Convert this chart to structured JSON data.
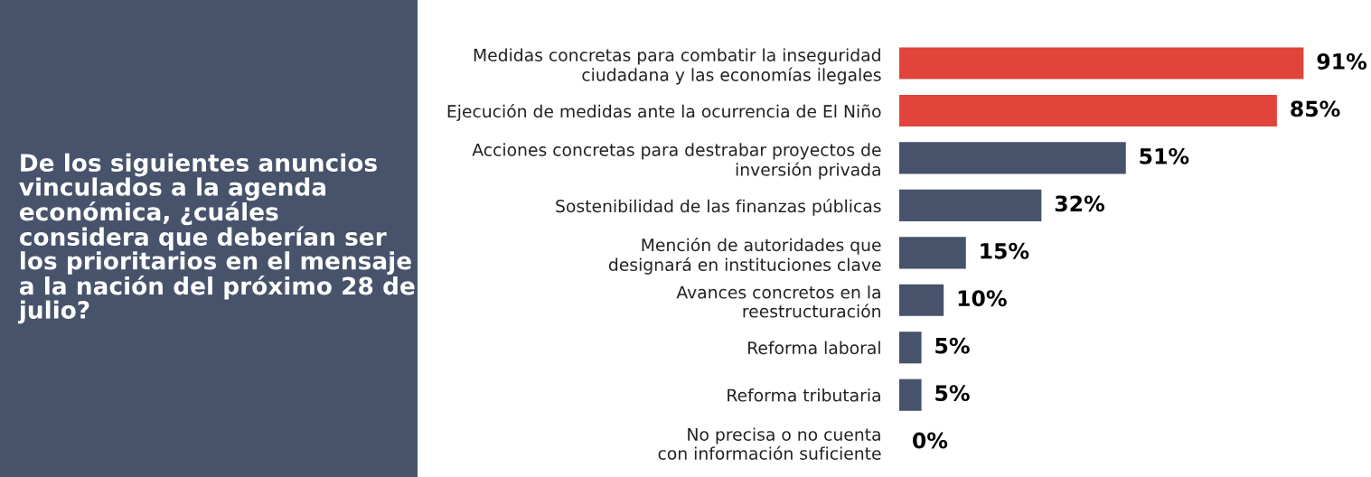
{
  "chart_data": {
    "type": "bar",
    "orientation": "horizontal",
    "title": "De los siguientes anuncios vinculados a la agenda económica, ¿cuáles considera que deberían ser los prioritarios en el mensaje a la nación del próximo 28 de julio?",
    "categories": [
      "Medidas concretas para combatir la inseguridad\nciudadana y las economías ilegales",
      "Ejecución de medidas ante la ocurrencia de El Niño",
      "Acciones concretas para destrabar proyectos de\ninversión privada",
      "Sostenibilidad de las finanzas públicas",
      "Mención de autoridades que\ndesignará en instituciones clave",
      "Avances concretos en la\nreestructuración",
      "Reforma laboral",
      "Reforma tributaria",
      "No precisa o no cuenta\ncon información suficiente"
    ],
    "values": [
      91,
      85,
      51,
      32,
      15,
      10,
      5,
      5,
      0
    ],
    "value_labels": [
      "91%",
      "85%",
      "51%",
      "32%",
      "15%",
      "10%",
      "5%",
      "5%",
      "0%"
    ],
    "colors": [
      "#e0443a",
      "#e0443a",
      "#46536b",
      "#46536b",
      "#46536b",
      "#46536b",
      "#46536b",
      "#46536b",
      "#46536b"
    ],
    "tick_labels": "y",
    "grid": false,
    "legend": false
  }
}
